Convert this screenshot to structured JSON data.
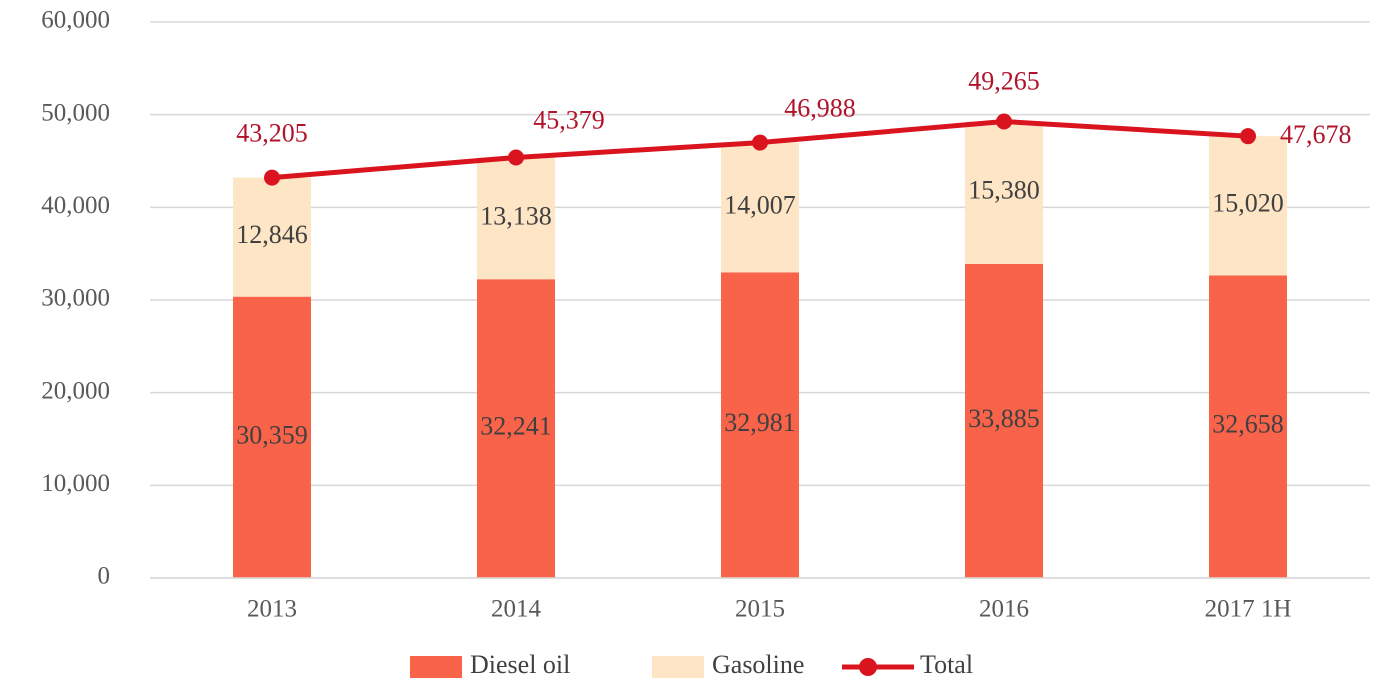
{
  "chart_data": {
    "type": "bar",
    "stacked": true,
    "categories": [
      "2013",
      "2014",
      "2015",
      "2016",
      "2017 1H"
    ],
    "series": [
      {
        "name": "Diesel oil",
        "color": "#f9634a",
        "values": [
          30359,
          32241,
          32981,
          33885,
          32658
        ],
        "value_labels": [
          "30,359",
          "32,241",
          "32,981",
          "33,885",
          "32,658"
        ]
      },
      {
        "name": "Gasoline",
        "color": "#fde5c6",
        "values": [
          12846,
          13138,
          14007,
          15380,
          15020
        ],
        "value_labels": [
          "12,846",
          "13,138",
          "14,007",
          "15,380",
          "15,020"
        ]
      },
      {
        "name": "Total",
        "type": "line",
        "color": "#d9141e",
        "values": [
          43205,
          45379,
          46988,
          49265,
          47678
        ],
        "value_labels": [
          "43,205",
          "45,379",
          "46,988",
          "49,265",
          "47,678"
        ]
      }
    ],
    "ylim": [
      0,
      60000
    ],
    "yticks": [
      0,
      {
        "value": 10000,
        "label": "10,000"
      },
      {
        "value": 20000,
        "label": "20,000"
      },
      {
        "value": 30000,
        "label": "30,000"
      },
      {
        "value": 40000,
        "label": "40,000"
      },
      {
        "value": 50000,
        "label": "50,000"
      },
      {
        "value": 60000,
        "label": "60,000"
      }
    ],
    "grid": true,
    "legend": "bottom"
  }
}
